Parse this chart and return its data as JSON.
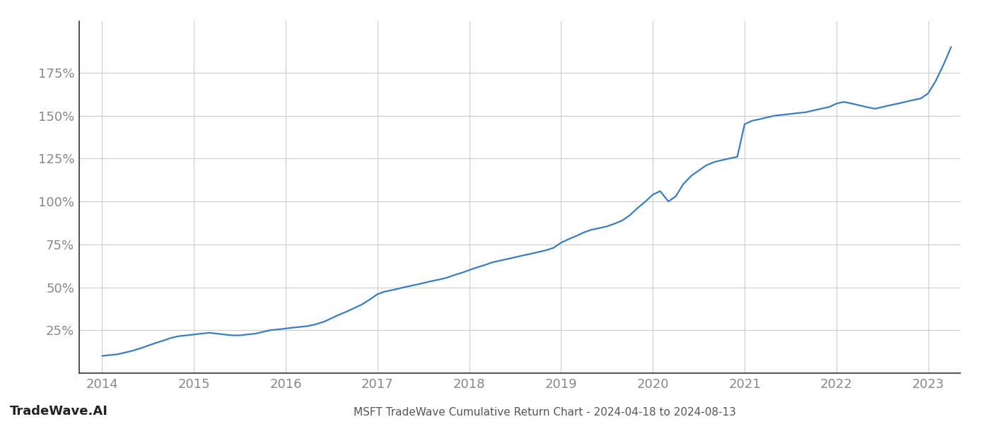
{
  "title": "MSFT TradeWave Cumulative Return Chart - 2024-04-18 to 2024-08-13",
  "watermark": "TradeWave.AI",
  "line_color": "#3a7ebf",
  "background_color": "#ffffff",
  "grid_color": "#cccccc",
  "x_years": [
    2014.0,
    2014.08,
    2014.17,
    2014.25,
    2014.33,
    2014.42,
    2014.5,
    2014.58,
    2014.67,
    2014.75,
    2014.83,
    2014.92,
    2015.0,
    2015.08,
    2015.17,
    2015.25,
    2015.33,
    2015.42,
    2015.5,
    2015.58,
    2015.67,
    2015.75,
    2015.83,
    2015.92,
    2016.0,
    2016.08,
    2016.17,
    2016.25,
    2016.33,
    2016.42,
    2016.5,
    2016.58,
    2016.67,
    2016.75,
    2016.83,
    2016.92,
    2017.0,
    2017.08,
    2017.17,
    2017.25,
    2017.33,
    2017.42,
    2017.5,
    2017.58,
    2017.67,
    2017.75,
    2017.83,
    2017.92,
    2018.0,
    2018.08,
    2018.17,
    2018.25,
    2018.33,
    2018.42,
    2018.5,
    2018.58,
    2018.67,
    2018.75,
    2018.83,
    2018.92,
    2019.0,
    2019.08,
    2019.17,
    2019.25,
    2019.33,
    2019.42,
    2019.5,
    2019.58,
    2019.67,
    2019.75,
    2019.83,
    2019.92,
    2020.0,
    2020.08,
    2020.17,
    2020.25,
    2020.33,
    2020.42,
    2020.5,
    2020.58,
    2020.67,
    2020.75,
    2020.83,
    2020.92,
    2021.0,
    2021.08,
    2021.17,
    2021.25,
    2021.33,
    2021.42,
    2021.5,
    2021.58,
    2021.67,
    2021.75,
    2021.83,
    2021.92,
    2022.0,
    2022.08,
    2022.17,
    2022.25,
    2022.33,
    2022.42,
    2022.5,
    2022.58,
    2022.67,
    2022.75,
    2022.83,
    2022.92,
    2023.0,
    2023.08,
    2023.17,
    2023.25
  ],
  "y_values": [
    10,
    10.5,
    11,
    12,
    13,
    14.5,
    16,
    17.5,
    19,
    20.5,
    21.5,
    22,
    22.5,
    23,
    23.5,
    23,
    22.5,
    22,
    22,
    22.5,
    23,
    24,
    25,
    25.5,
    26,
    26.5,
    27,
    27.5,
    28.5,
    30,
    32,
    34,
    36,
    38,
    40,
    43,
    46,
    47.5,
    48.5,
    49.5,
    50.5,
    51.5,
    52.5,
    53.5,
    54.5,
    55.5,
    57,
    58.5,
    60,
    61.5,
    63,
    64.5,
    65.5,
    66.5,
    67.5,
    68.5,
    69.5,
    70.5,
    71.5,
    73,
    76,
    78,
    80,
    82,
    83.5,
    84.5,
    85.5,
    87,
    89,
    92,
    96,
    100,
    104,
    106,
    100,
    103,
    110,
    115,
    118,
    121,
    123,
    124,
    125,
    126,
    145,
    147,
    148,
    149,
    150,
    150.5,
    151,
    151.5,
    152,
    153,
    154,
    155,
    157,
    158,
    157,
    156,
    155,
    154,
    155,
    156,
    157,
    158,
    159,
    160,
    163,
    170,
    180,
    190
  ],
  "xtick_labels": [
    "2014",
    "2015",
    "2016",
    "2017",
    "2018",
    "2019",
    "2020",
    "2021",
    "2022",
    "2023"
  ],
  "xtick_positions": [
    2014,
    2015,
    2016,
    2017,
    2018,
    2019,
    2020,
    2021,
    2022,
    2023
  ],
  "ytick_values": [
    25,
    50,
    75,
    100,
    125,
    150,
    175
  ],
  "ytick_labels": [
    "25%",
    "50%",
    "75%",
    "100%",
    "125%",
    "150%",
    "175%"
  ],
  "xlim": [
    2013.75,
    2023.35
  ],
  "ylim": [
    0,
    205
  ],
  "line_width": 1.6,
  "title_fontsize": 11,
  "tick_fontsize": 13,
  "watermark_fontsize": 13,
  "axis_label_color": "#888888",
  "title_color": "#555555",
  "spine_color": "#333333"
}
